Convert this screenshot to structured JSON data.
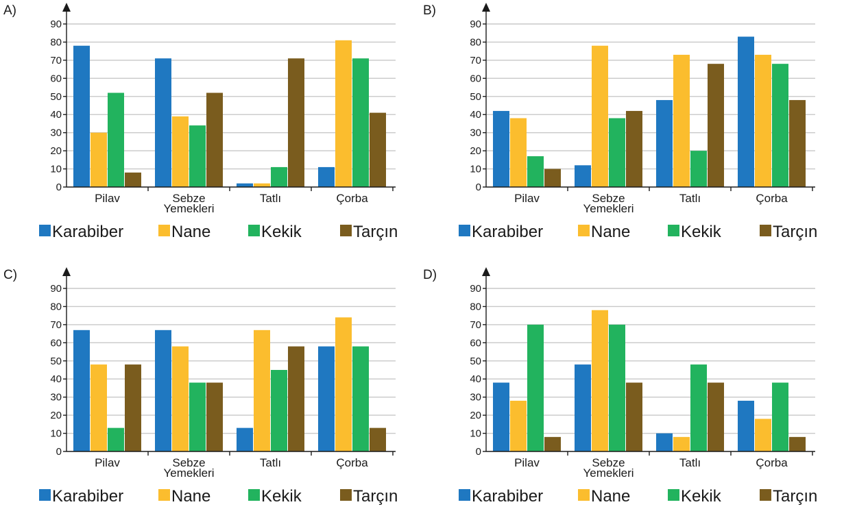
{
  "chart_data": [
    {
      "type": "bar",
      "title": "A)",
      "categories": [
        [
          "Pilav"
        ],
        [
          "Sebze",
          "Yemekleri"
        ],
        [
          "Tatlı"
        ],
        [
          "Çorba"
        ]
      ],
      "yticks": [
        "0",
        "10",
        "20",
        "30",
        "40",
        "50",
        "60",
        "70",
        "80",
        "90"
      ],
      "ylim": [
        0,
        90
      ],
      "grid": true,
      "legend_position": "bottom",
      "series": [
        {
          "name": "Karabiber",
          "values": [
            78,
            71,
            2,
            11
          ]
        },
        {
          "name": "Nane",
          "values": [
            30,
            39,
            2,
            81
          ]
        },
        {
          "name": "Kekik",
          "values": [
            52,
            34,
            11,
            71
          ]
        },
        {
          "name": "Tarçın",
          "values": [
            8,
            52,
            71,
            41
          ]
        }
      ]
    },
    {
      "type": "bar",
      "title": "B)",
      "categories": [
        [
          "Pilav"
        ],
        [
          "Sebze",
          "Yemekleri"
        ],
        [
          "Tatlı"
        ],
        [
          "Çorba"
        ]
      ],
      "yticks": [
        "0",
        "10",
        "20",
        "30",
        "40",
        "50",
        "60",
        "70",
        "80",
        "90"
      ],
      "ylim": [
        0,
        90
      ],
      "grid": true,
      "legend_position": "bottom",
      "series": [
        {
          "name": "Karabiber",
          "values": [
            42,
            12,
            48,
            83
          ]
        },
        {
          "name": "Nane",
          "values": [
            38,
            78,
            73,
            73
          ]
        },
        {
          "name": "Kekik",
          "values": [
            17,
            38,
            20,
            68
          ]
        },
        {
          "name": "Tarçın",
          "values": [
            10,
            42,
            68,
            48
          ]
        }
      ]
    },
    {
      "type": "bar",
      "title": "C)",
      "categories": [
        [
          "Pilav"
        ],
        [
          "Sebze",
          "Yemekleri"
        ],
        [
          "Tatlı"
        ],
        [
          "Çorba"
        ]
      ],
      "yticks": [
        "0",
        "10",
        "20",
        "30",
        "40",
        "50",
        "60",
        "70",
        "80",
        "90"
      ],
      "ylim": [
        0,
        90
      ],
      "grid": true,
      "legend_position": "bottom",
      "series": [
        {
          "name": "Karabiber",
          "values": [
            67,
            67,
            13,
            58
          ]
        },
        {
          "name": "Nane",
          "values": [
            48,
            58,
            67,
            74
          ]
        },
        {
          "name": "Kekik",
          "values": [
            13,
            38,
            45,
            58
          ]
        },
        {
          "name": "Tarçın",
          "values": [
            48,
            38,
            58,
            13
          ]
        }
      ]
    },
    {
      "type": "bar",
      "title": "D)",
      "categories": [
        [
          "Pilav"
        ],
        [
          "Sebze",
          "Yemekleri"
        ],
        [
          "Tatlı"
        ],
        [
          "Çorba"
        ]
      ],
      "yticks": [
        "0",
        "10",
        "20",
        "30",
        "40",
        "50",
        "60",
        "70",
        "80",
        "90"
      ],
      "ylim": [
        0,
        90
      ],
      "grid": true,
      "legend_position": "bottom",
      "series": [
        {
          "name": "Karabiber",
          "values": [
            38,
            48,
            10,
            28
          ]
        },
        {
          "name": "Nane",
          "values": [
            28,
            78,
            8,
            18
          ]
        },
        {
          "name": "Kekik",
          "values": [
            70,
            70,
            48,
            38
          ]
        },
        {
          "name": "Tarçın",
          "values": [
            8,
            38,
            38,
            8
          ]
        }
      ]
    }
  ],
  "colors": {
    "Karabiber": "#1f78c1",
    "Nane": "#fbbd2e",
    "Kekik": "#22b35e",
    "Tarçın": "#7a5c1e",
    "axis": "#1a1a1a",
    "grid": "#c8c8c8"
  }
}
